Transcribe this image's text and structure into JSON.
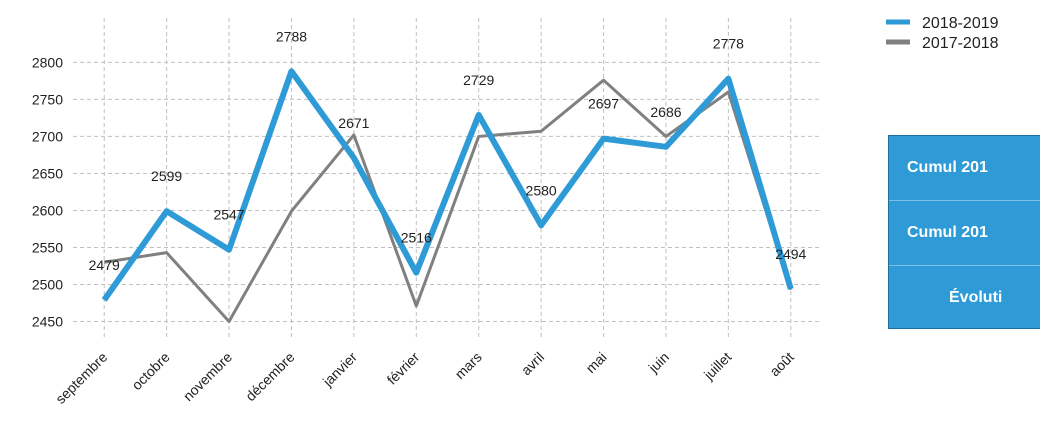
{
  "chart_data": {
    "type": "line",
    "categories": [
      "septembre",
      "octobre",
      "novembre",
      "décembre",
      "janvier",
      "février",
      "mars",
      "avril",
      "mai",
      "juin",
      "juillet",
      "août"
    ],
    "series": [
      {
        "name": "2018-2019",
        "color": "#2e9bd6",
        "values": [
          2479,
          2599,
          2547,
          2788,
          2671,
          2516,
          2729,
          2580,
          2697,
          2686,
          2778,
          2494
        ],
        "show_labels": true
      },
      {
        "name": "2017-2018",
        "color": "#808080",
        "values": [
          2530,
          2543,
          2450,
          2599,
          2702,
          2471,
          2700,
          2707,
          2776,
          2700,
          2760,
          2493
        ],
        "show_labels": false
      }
    ],
    "ylim": [
      2425,
      2860
    ],
    "yticks": [
      2450,
      2500,
      2550,
      2600,
      2650,
      2700,
      2750,
      2800
    ],
    "grid": true,
    "legend": "top-right"
  },
  "summary_table": {
    "rows": [
      "Cumul 201",
      "Cumul 201",
      "Évoluti"
    ]
  }
}
